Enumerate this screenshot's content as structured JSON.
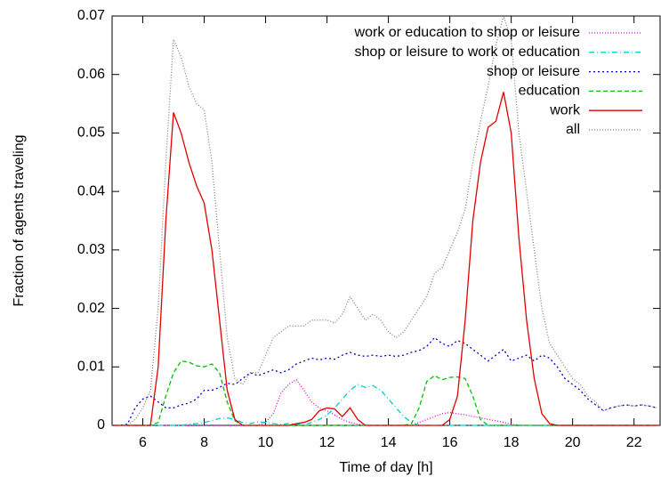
{
  "chart_data": {
    "type": "line",
    "xlabel": "Time of day [h]",
    "ylabel": "Fraction of agents traveling",
    "x": [
      5,
      5.25,
      5.5,
      5.75,
      6,
      6.25,
      6.5,
      6.75,
      7,
      7.25,
      7.5,
      7.75,
      8,
      8.25,
      8.5,
      8.75,
      9,
      9.25,
      9.5,
      9.75,
      10,
      10.25,
      10.5,
      10.75,
      11,
      11.25,
      11.5,
      11.75,
      12,
      12.25,
      12.5,
      12.75,
      13,
      13.25,
      13.5,
      13.75,
      14,
      14.25,
      14.5,
      14.75,
      15,
      15.25,
      15.5,
      15.75,
      16,
      16.25,
      16.5,
      16.75,
      17,
      17.25,
      17.5,
      17.75,
      18,
      18.25,
      18.5,
      18.75,
      19,
      19.25,
      19.5,
      19.75,
      20,
      20.25,
      20.5,
      20.75,
      21,
      21.25,
      21.5,
      21.75,
      22,
      22.25,
      22.5,
      22.75
    ],
    "xlim": [
      5,
      22.85
    ],
    "ylim": [
      0,
      0.07
    ],
    "xticks": [
      6,
      8,
      10,
      12,
      14,
      16,
      18,
      20,
      22
    ],
    "yticks": [
      0,
      0.01,
      0.02,
      0.03,
      0.04,
      0.05,
      0.06,
      0.07
    ],
    "legend": "top-right",
    "series": [
      {
        "name": "work or education to shop or leisure",
        "color": "#e000e0",
        "dash": "1,2",
        "values": [
          0,
          0,
          0,
          0,
          0,
          0,
          0,
          0,
          0,
          0,
          0,
          0,
          0,
          0,
          0,
          0,
          0,
          0,
          0,
          0,
          0.0005,
          0.002,
          0.0055,
          0.007,
          0.0078,
          0.006,
          0.004,
          0.003,
          0.0025,
          0.0018,
          0.001,
          0.0005,
          0.0002,
          0,
          0,
          0,
          0,
          0,
          0,
          0,
          0.0005,
          0.001,
          0.0015,
          0.002,
          0.0022,
          0.002,
          0.0018,
          0.0015,
          0.0013,
          0.001,
          0.0008,
          0.0005,
          0.0002,
          0,
          0,
          0,
          0,
          0,
          0,
          0,
          0,
          0,
          0,
          0,
          0,
          0,
          0,
          0,
          0,
          0,
          0,
          0
        ]
      },
      {
        "name": "shop or leisure to work or education",
        "color": "#00d0d0",
        "dash": "6,3,1,3",
        "values": [
          0,
          0,
          0,
          0,
          0,
          0,
          0,
          0,
          0,
          0,
          0.0002,
          0.0003,
          0.0005,
          0.0008,
          0.0012,
          0.0013,
          0.001,
          0.0005,
          0.0003,
          0.0006,
          0.0005,
          0.0003,
          0.0002,
          0.0003,
          0.0002,
          0.0001,
          0.0005,
          0.001,
          0.0018,
          0.003,
          0.0045,
          0.006,
          0.007,
          0.0065,
          0.0068,
          0.006,
          0.0045,
          0.003,
          0.0015,
          0.0005,
          0,
          0,
          0,
          0,
          0,
          0,
          0,
          0,
          0,
          0,
          0,
          0,
          0,
          0,
          0,
          0,
          0,
          0,
          0,
          0,
          0,
          0,
          0,
          0,
          0,
          0,
          0,
          0,
          0,
          0,
          0,
          0
        ]
      },
      {
        "name": "shop or leisure",
        "color": "#0000d0",
        "dash": "2,3",
        "values": [
          0,
          0,
          0.0002,
          0.003,
          0.0045,
          0.005,
          0.004,
          0.003,
          0.003,
          0.0035,
          0.0038,
          0.0045,
          0.006,
          0.006,
          0.0065,
          0.0072,
          0.007,
          0.008,
          0.009,
          0.0085,
          0.009,
          0.0095,
          0.009,
          0.0095,
          0.0105,
          0.011,
          0.0115,
          0.0112,
          0.0115,
          0.0113,
          0.012,
          0.0125,
          0.012,
          0.0118,
          0.012,
          0.0118,
          0.012,
          0.0118,
          0.012,
          0.0125,
          0.0128,
          0.0135,
          0.015,
          0.014,
          0.0135,
          0.0145,
          0.014,
          0.013,
          0.012,
          0.011,
          0.012,
          0.013,
          0.011,
          0.0115,
          0.012,
          0.011,
          0.012,
          0.0115,
          0.01,
          0.008,
          0.007,
          0.006,
          0.0045,
          0.0035,
          0.0025,
          0.003,
          0.0033,
          0.0035,
          0.0033,
          0.0035,
          0.0033,
          0.003
        ]
      },
      {
        "name": "education",
        "color": "#00c000",
        "dash": "5,3",
        "values": [
          0,
          0,
          0,
          0,
          0,
          0,
          0.0005,
          0.005,
          0.009,
          0.011,
          0.0108,
          0.0102,
          0.01,
          0.0105,
          0.009,
          0.004,
          0.0008,
          0,
          0,
          0,
          0,
          0,
          0,
          0,
          0,
          0,
          0,
          0,
          0,
          0,
          0,
          0,
          0,
          0,
          0,
          0,
          0,
          0,
          0,
          0.0003,
          0.003,
          0.0075,
          0.0085,
          0.0078,
          0.0082,
          0.0083,
          0.008,
          0.005,
          0.001,
          0,
          0,
          0,
          0,
          0,
          0,
          0,
          0,
          0,
          0,
          0,
          0,
          0,
          0,
          0,
          0,
          0,
          0,
          0,
          0,
          0,
          0,
          0
        ]
      },
      {
        "name": "work",
        "color": "#e00000",
        "dash": "",
        "values": [
          0,
          0,
          0,
          0,
          0,
          0,
          0.01,
          0.035,
          0.0535,
          0.05,
          0.045,
          0.041,
          0.038,
          0.03,
          0.018,
          0.006,
          0.001,
          0,
          0,
          0,
          0,
          0,
          0,
          0,
          0.0003,
          0.0005,
          0.001,
          0.0025,
          0.003,
          0.0028,
          0.0015,
          0.003,
          0.001,
          0,
          0,
          0,
          0,
          0,
          0,
          0,
          0,
          0,
          0,
          0,
          0.001,
          0.005,
          0.018,
          0.035,
          0.045,
          0.051,
          0.052,
          0.057,
          0.05,
          0.032,
          0.018,
          0.008,
          0.002,
          0.0003,
          0,
          0,
          0,
          0,
          0,
          0,
          0,
          0,
          0,
          0,
          0,
          0,
          0,
          0
        ]
      },
      {
        "name": "all",
        "color": "#808080",
        "dash": "1,2",
        "values": [
          0,
          0,
          0,
          0.001,
          0.003,
          0.006,
          0.02,
          0.045,
          0.066,
          0.063,
          0.058,
          0.055,
          0.054,
          0.045,
          0.03,
          0.015,
          0.008,
          0.007,
          0.009,
          0.009,
          0.012,
          0.015,
          0.016,
          0.017,
          0.017,
          0.017,
          0.018,
          0.018,
          0.018,
          0.0175,
          0.019,
          0.022,
          0.02,
          0.018,
          0.019,
          0.018,
          0.016,
          0.015,
          0.016,
          0.018,
          0.02,
          0.022,
          0.026,
          0.027,
          0.03,
          0.033,
          0.037,
          0.045,
          0.052,
          0.058,
          0.065,
          0.07,
          0.066,
          0.05,
          0.04,
          0.03,
          0.02,
          0.014,
          0.012,
          0.01,
          0.008,
          0.007,
          0.005,
          0.004,
          0.0025,
          0.003,
          0.0033,
          0.0035,
          0.0033,
          0.0035,
          0.0033,
          0.003
        ]
      }
    ]
  }
}
